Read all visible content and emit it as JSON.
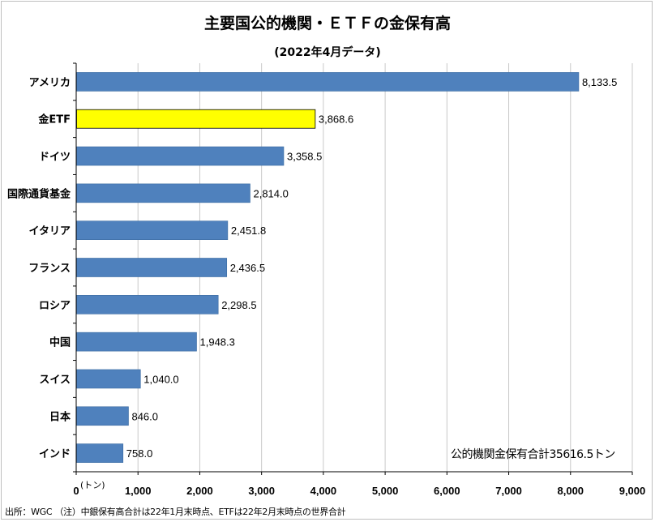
{
  "chart_data": {
    "type": "bar",
    "orientation": "horizontal",
    "title": "主要国公的機関・ＥＴＦの金保有高",
    "subtitle": "(2022年4月データ)",
    "categories": [
      "アメリカ",
      "金ETF",
      "ドイツ",
      "国際通貨基金",
      "イタリア",
      "フランス",
      "ロシア",
      "中国",
      "スイス",
      "日本",
      "インド"
    ],
    "values": [
      8133.5,
      3868.6,
      3358.5,
      2814.0,
      2451.8,
      2436.5,
      2298.5,
      1948.3,
      1040.0,
      846.0,
      758.0
    ],
    "value_labels": [
      "8,133.5",
      "3,868.6",
      "3,358.5",
      "2,814.0",
      "2,451.8",
      "2,436.5",
      "2,298.5",
      "1,948.3",
      "1,040.0",
      "846.0",
      "758.0"
    ],
    "highlight_category": "金ETF",
    "xlim": [
      0,
      9000
    ],
    "xticks": [
      0,
      1000,
      2000,
      3000,
      4000,
      5000,
      6000,
      7000,
      8000,
      9000
    ],
    "xtick_labels": [
      "0",
      "1,000",
      "2,000",
      "3,000",
      "4,000",
      "5,000",
      "6,000",
      "7,000",
      "8,000",
      "9,000"
    ],
    "unit_label": "(トン)",
    "grid": true,
    "colors": {
      "bar": "#4f81bd",
      "bar_border": "#3a6aa0",
      "highlight": "#ffff00",
      "highlight_border": "#000000",
      "grid": "#c8c8c8"
    },
    "annotation": "公的機関金保有合計35616.5トン"
  },
  "footer": {
    "source": "出所：WGC （注）中銀保有高合計は22年1月末時点、ETFは22年2月末時点の世界合計"
  }
}
